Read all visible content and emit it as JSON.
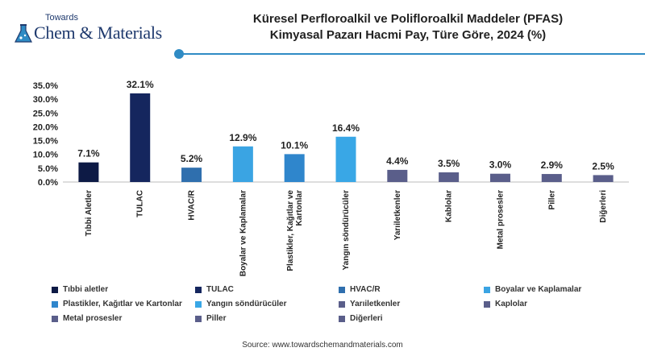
{
  "logo": {
    "small_text": "Towards",
    "big_text": "Chem & Materials",
    "icon": "flask-icon"
  },
  "title_line1": "Küresel Perfloroalkil ve Polifloroalkil Maddeler (PFAS)",
  "title_line2": "Kimyasal Pazarı Hacmi Pay, Türe Göre, 2024 (%)",
  "source": "Source: www.towardschemandmaterials.com",
  "colors": {
    "accent": "#2f8bc4"
  },
  "chart_data": {
    "type": "bar",
    "title": "Küresel Perfloroalkil ve Polifloroalkil Maddeler (PFAS) Kimyasal Pazarı Hacmi Pay, Türe Göre, 2024 (%)",
    "xlabel": "",
    "ylabel": "",
    "ylim": [
      0,
      35
    ],
    "yticks": [
      "0.0%",
      "5.0%",
      "10.0%",
      "15.0%",
      "20.0%",
      "25.0%",
      "30.0%",
      "35.0%"
    ],
    "grid": false,
    "legend_position": "bottom",
    "categories": [
      "Tıbbi Aletler",
      "TULAC",
      "HVAC/R",
      "Boyalar ve Kaplamalar",
      "Plastikler, Kağıtlar ve Kartonlar",
      "Yangın söndürücüler",
      "Yarıiletkenler",
      "Kablolar",
      "Metal prosesler",
      "Piller",
      "Diğerleri"
    ],
    "values": [
      7.1,
      32.1,
      5.2,
      12.9,
      10.1,
      16.4,
      4.4,
      3.5,
      3.0,
      2.9,
      2.5
    ],
    "value_labels": [
      "7.1%",
      "32.1%",
      "5.2%",
      "12.9%",
      "10.1%",
      "16.4%",
      "4.4%",
      "3.5%",
      "3.0%",
      "2.9%",
      "2.5%"
    ],
    "colors": [
      "#0d1a45",
      "#15265e",
      "#2f6fae",
      "#3aa4e3",
      "#2f86cc",
      "#39a7e6",
      "#5a5e8a",
      "#5a5e8a",
      "#5a5e8a",
      "#5a5e8a",
      "#5a5e8a"
    ],
    "legend": [
      {
        "label": "Tıbbi aletler",
        "color": "#0d1a45"
      },
      {
        "label": "TULAC",
        "color": "#15265e"
      },
      {
        "label": "HVAC/R",
        "color": "#2f6fae"
      },
      {
        "label": "Boyalar ve Kaplamalar",
        "color": "#3aa4e3"
      },
      {
        "label": "Plastikler, Kağıtlar ve Kartonlar",
        "color": "#2f86cc"
      },
      {
        "label": "Yangın söndürücüler",
        "color": "#39a7e6"
      },
      {
        "label": "Yarıiletkenler",
        "color": "#5a5e8a"
      },
      {
        "label": "Kaplolar",
        "color": "#5a5e8a"
      },
      {
        "label": "Metal prosesler",
        "color": "#5a5e8a"
      },
      {
        "label": "Piller",
        "color": "#5a5e8a"
      },
      {
        "label": "Diğerleri",
        "color": "#5a5e8a"
      }
    ]
  }
}
